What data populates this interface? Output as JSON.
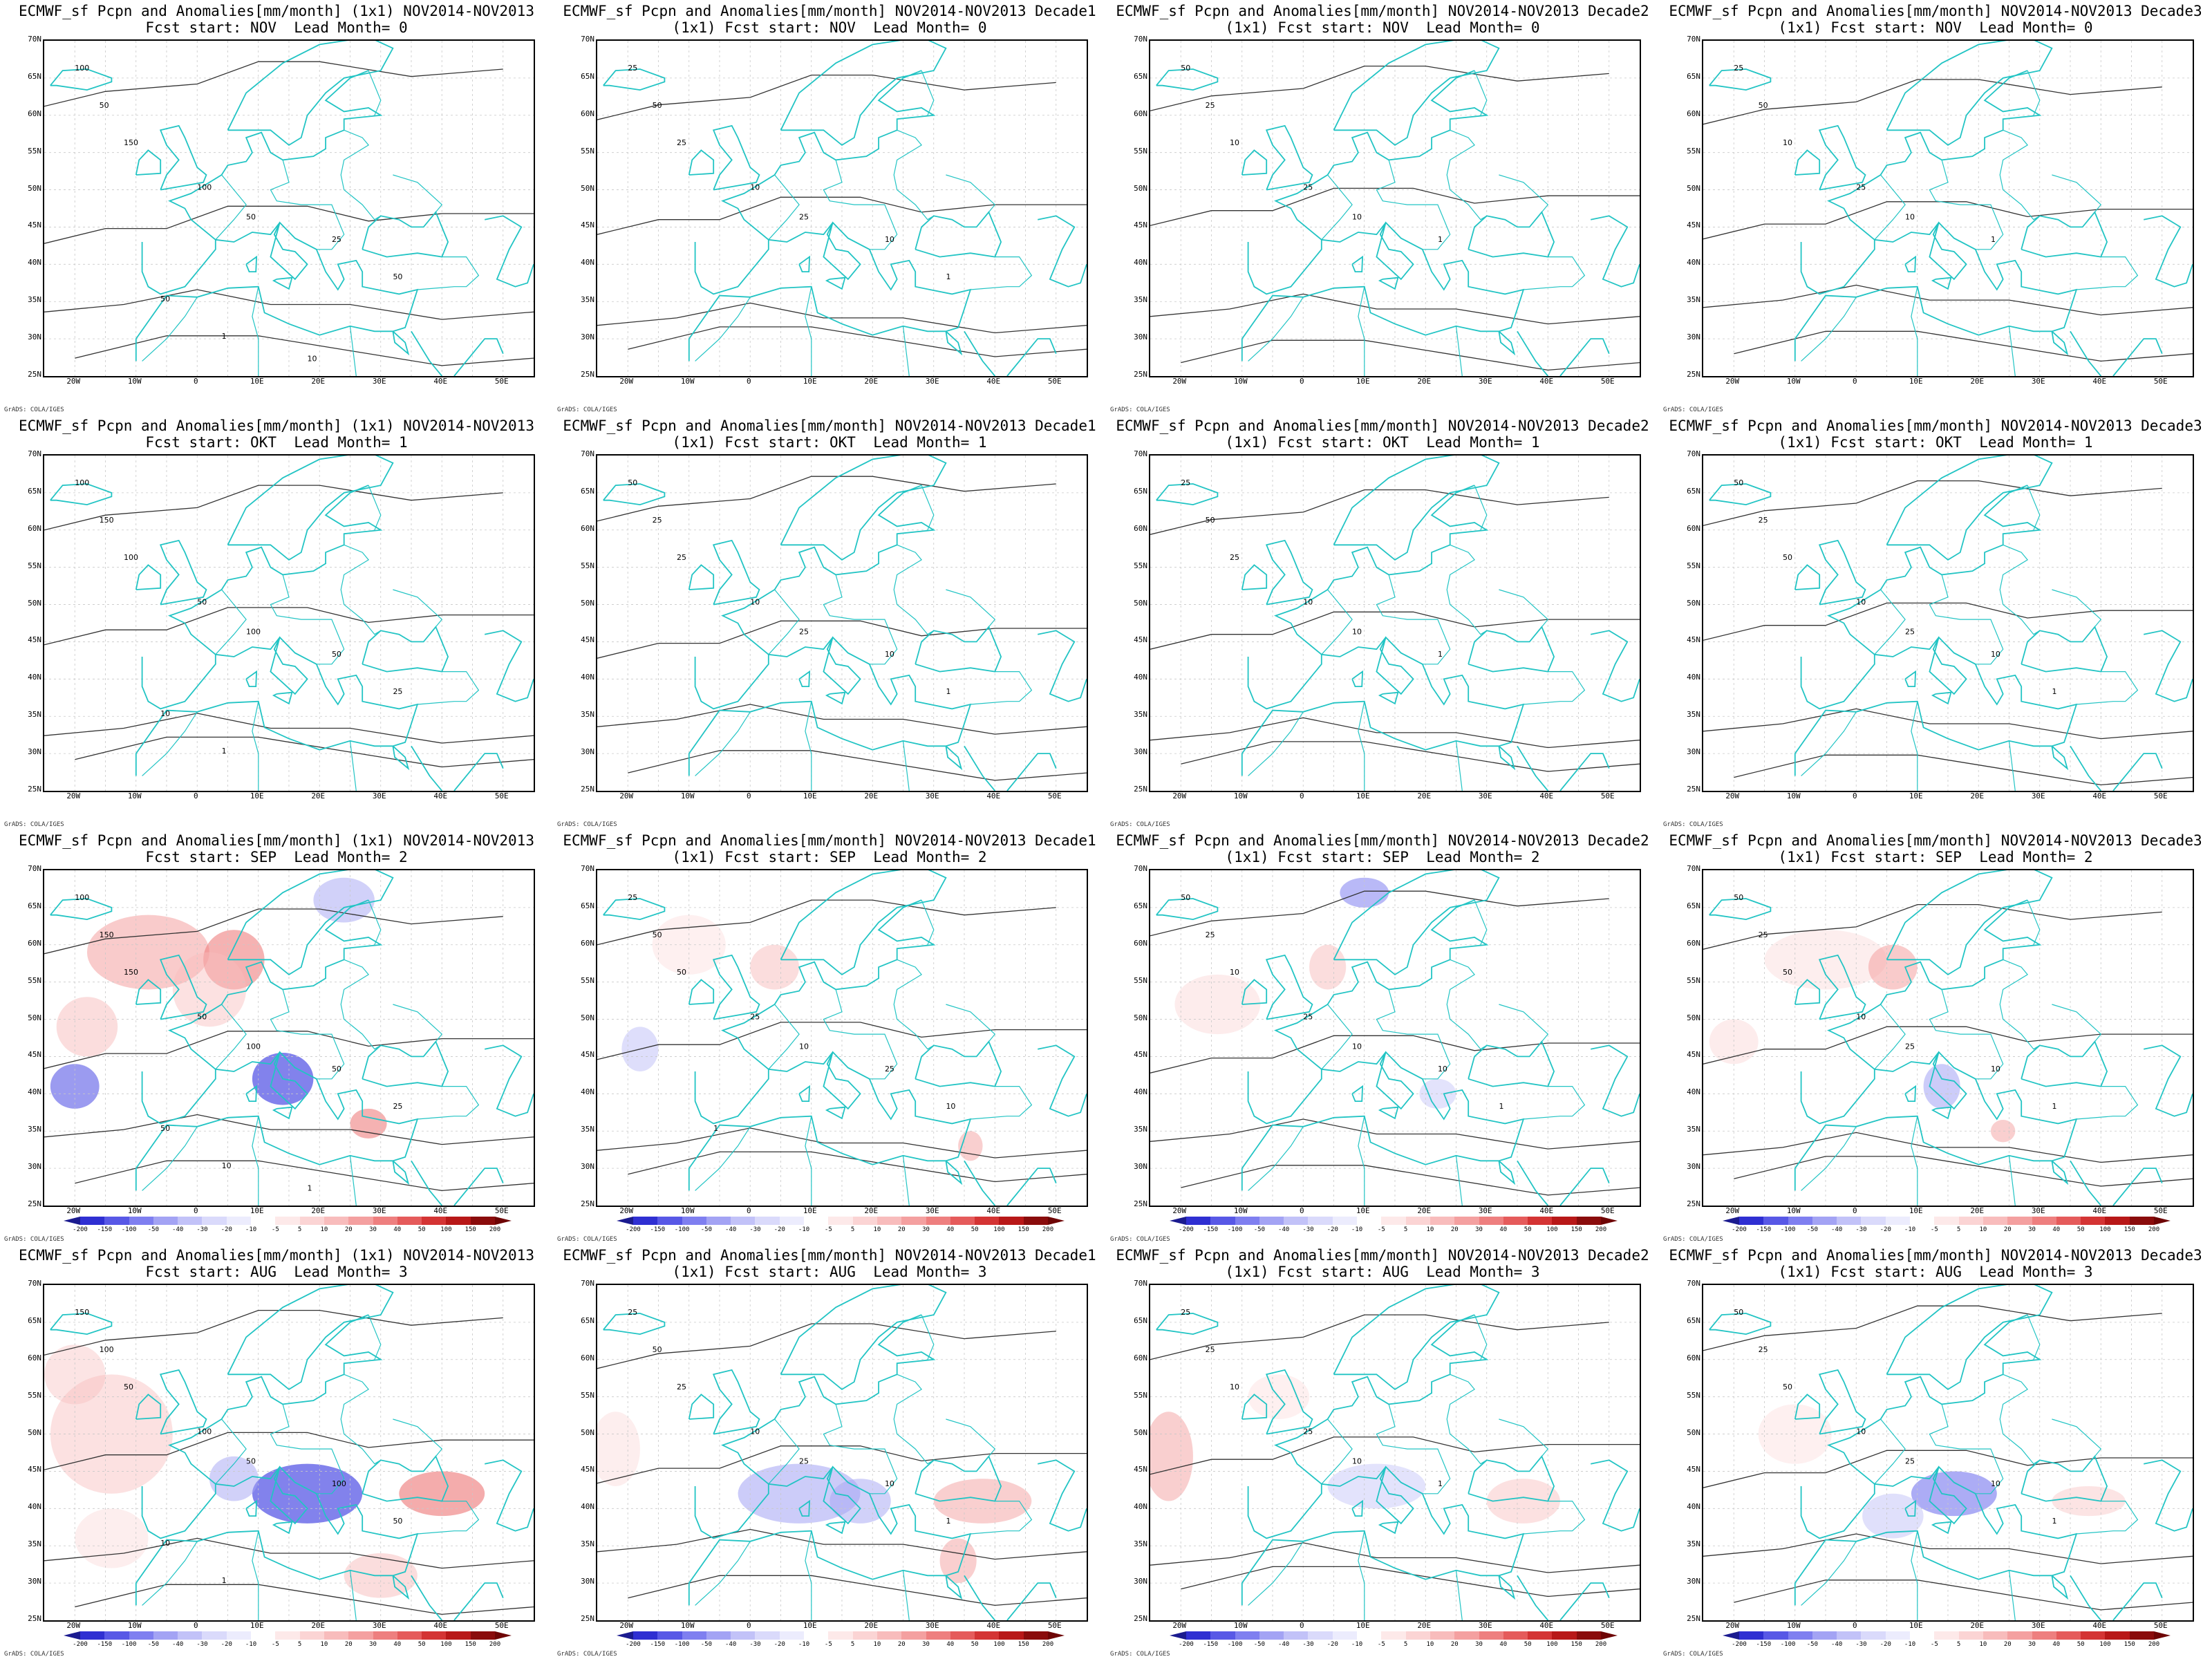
{
  "credit": "GrADS: COLA/IGES",
  "lat_labels": [
    "70N",
    "65N",
    "60N",
    "55N",
    "50N",
    "45N",
    "40N",
    "35N",
    "30N",
    "25N"
  ],
  "lon_labels": [
    "20W",
    "10W",
    "0",
    "10E",
    "20E",
    "30E",
    "40E",
    "50E"
  ],
  "colorbar": {
    "ticks": [
      "-200",
      "-150",
      "-100",
      "-50",
      "-40",
      "-30",
      "-20",
      "-10",
      "-5",
      "5",
      "10",
      "20",
      "30",
      "40",
      "50",
      "100",
      "150",
      "200"
    ],
    "colors": [
      "#1b1b8f",
      "#2f2fd2",
      "#5858e6",
      "#7f7ff0",
      "#a3a3f4",
      "#c2c2f8",
      "#dadafb",
      "#ececfd",
      "#ffffff",
      "#fde9e9",
      "#fbd4d4",
      "#f8bcbc",
      "#f4a0a0",
      "#ee7f7f",
      "#e55b5b",
      "#d43434",
      "#b81818",
      "#8a0c0c",
      "#6e0505"
    ]
  },
  "rows": [
    {
      "start": "NOV",
      "lead": "0",
      "anomaly": false
    },
    {
      "start": "OKT",
      "lead": "1",
      "anomaly": false
    },
    {
      "start": "SEP",
      "lead": "2",
      "anomaly": true
    },
    {
      "start": "AUG",
      "lead": "3",
      "anomaly": true
    }
  ],
  "panels": [
    {
      "title": "ECMWF_sf Pcpn and Anomalies[mm/month] (1x1) NOV2014-NOV2013\nFcst start: NOV  Lead Month= 0",
      "contour_labels": [
        "100",
        "50",
        "150",
        "100",
        "50",
        "25",
        "50",
        "50",
        "1",
        "10"
      ]
    },
    {
      "title": "ECMWF_sf Pcpn and Anomalies[mm/month] NOV2014-NOV2013 Decade1\n(1x1) Fcst start: NOV  Lead Month= 0",
      "contour_labels": [
        "25",
        "50",
        "25",
        "10",
        "25",
        "10",
        "1"
      ]
    },
    {
      "title": "ECMWF_sf Pcpn and Anomalies[mm/month] NOV2014-NOV2013 Decade2\n(1x1) Fcst start: NOV  Lead Month= 0",
      "contour_labels": [
        "50",
        "25",
        "10",
        "25",
        "10",
        "1"
      ]
    },
    {
      "title": "ECMWF_sf Pcpn and Anomalies[mm/month] NOV2014-NOV2013 Decade3\n(1x1) Fcst start: NOV  Lead Month= 0",
      "contour_labels": [
        "25",
        "50",
        "10",
        "25",
        "10",
        "1"
      ]
    },
    {
      "title": "ECMWF_sf Pcpn and Anomalies[mm/month] (1x1) NOV2014-NOV2013\nFcst start: OKT  Lead Month= 1",
      "contour_labels": [
        "100",
        "150",
        "100",
        "50",
        "100",
        "50",
        "25",
        "10",
        "1"
      ]
    },
    {
      "title": "ECMWF_sf Pcpn and Anomalies[mm/month] NOV2014-NOV2013 Decade1\n(1x1) Fcst start: OKT  Lead Month= 1",
      "contour_labels": [
        "50",
        "25",
        "25",
        "10",
        "25",
        "10",
        "1"
      ]
    },
    {
      "title": "ECMWF_sf Pcpn and Anomalies[mm/month] NOV2014-NOV2013 Decade2\n(1x1) Fcst start: OKT  Lead Month= 1",
      "contour_labels": [
        "25",
        "50",
        "25",
        "10",
        "10",
        "1"
      ]
    },
    {
      "title": "ECMWF_sf Pcpn and Anomalies[mm/month] NOV2014-NOV2013 Decade3\n(1x1) Fcst start: OKT  Lead Month= 1",
      "contour_labels": [
        "50",
        "25",
        "50",
        "10",
        "25",
        "10",
        "1"
      ]
    },
    {
      "title": "ECMWF_sf Pcpn and Anomalies[mm/month] (1x1) NOV2014-NOV2013\nFcst start: SEP  Lead Month= 2",
      "contour_labels": [
        "100",
        "150",
        "150",
        "50",
        "100",
        "50",
        "25",
        "50",
        "10",
        "1"
      ]
    },
    {
      "title": "ECMWF_sf Pcpn and Anomalies[mm/month] NOV2014-NOV2013 Decade1\n(1x1) Fcst start: SEP  Lead Month= 2",
      "contour_labels": [
        "25",
        "50",
        "50",
        "25",
        "10",
        "25",
        "10",
        "1"
      ]
    },
    {
      "title": "ECMWF_sf Pcpn and Anomalies[mm/month] NOV2014-NOV2013 Decade2\n(1x1) Fcst start: SEP  Lead Month= 2",
      "contour_labels": [
        "50",
        "25",
        "10",
        "25",
        "10",
        "10",
        "1"
      ]
    },
    {
      "title": "ECMWF_sf Pcpn and Anomalies[mm/month] NOV2014-NOV2013 Decade3\n(1x1) Fcst start: SEP  Lead Month= 2",
      "contour_labels": [
        "50",
        "25",
        "50",
        "10",
        "25",
        "10",
        "1"
      ]
    },
    {
      "title": "ECMWF_sf Pcpn and Anomalies[mm/month] (1x1) NOV2014-NOV2013\nFcst start: AUG  Lead Month= 3",
      "contour_labels": [
        "150",
        "100",
        "50",
        "100",
        "50",
        "100",
        "50",
        "10",
        "1"
      ]
    },
    {
      "title": "ECMWF_sf Pcpn and Anomalies[mm/month] NOV2014-NOV2013 Decade1\n(1x1) Fcst start: AUG  Lead Month= 3",
      "contour_labels": [
        "25",
        "50",
        "25",
        "10",
        "25",
        "10",
        "1"
      ]
    },
    {
      "title": "ECMWF_sf Pcpn and Anomalies[mm/month] NOV2014-NOV2013 Decade2\n(1x1) Fcst start: AUG  Lead Month= 3",
      "contour_labels": [
        "25",
        "25",
        "10",
        "25",
        "10",
        "1"
      ]
    },
    {
      "title": "ECMWF_sf Pcpn and Anomalies[mm/month] NOV2014-NOV2013 Decade3\n(1x1) Fcst start: AUG  Lead Month= 3",
      "contour_labels": [
        "50",
        "25",
        "50",
        "10",
        "25",
        "10",
        "1"
      ]
    }
  ]
}
